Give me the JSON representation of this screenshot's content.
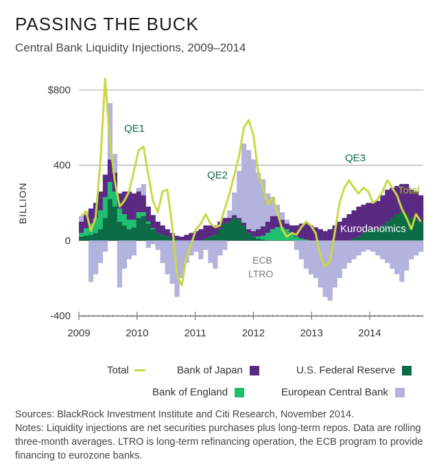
{
  "title": "PASSING THE BUCK",
  "subtitle": "Central Bank Liquidity Injections, 2009–2014",
  "colors": {
    "fed": "#0b6b45",
    "boe": "#1fbf6f",
    "boj": "#5a2a82",
    "ecb": "#b3b3dd",
    "total": "#c9d845",
    "axis": "#555555",
    "annotation_fed": "#0b6b45",
    "annotation_total": "#a9b82a",
    "annotation_light": "#777777"
  },
  "chart_data": {
    "type": "bar",
    "stacked": true,
    "title": "Central Bank Liquidity Injections, 2009–2014",
    "ylabel": "BILLION",
    "ylim": [
      -400,
      800
    ],
    "yticks": [
      -400,
      0,
      400,
      800
    ],
    "ytick_labels": [
      "-400",
      "0",
      "400",
      "$800"
    ],
    "xlim": [
      2009.0,
      2014.92
    ],
    "xticks": [
      2009,
      2010,
      2011,
      2012,
      2013,
      2014
    ],
    "xtick_labels": [
      "2009",
      "2010",
      "2011",
      "2012",
      "2013",
      "2014"
    ],
    "x_start": 2009.0,
    "x_step": 0.08333,
    "series": [
      {
        "name": "U.S. Federal Reserve",
        "key": "fed",
        "values": [
          20,
          25,
          30,
          40,
          60,
          120,
          220,
          180,
          100,
          80,
          60,
          70,
          120,
          130,
          90,
          60,
          40,
          30,
          20,
          10,
          5,
          0,
          0,
          0,
          0,
          0,
          10,
          20,
          30,
          60,
          90,
          100,
          120,
          110,
          80,
          40,
          20,
          10,
          5,
          0,
          0,
          0,
          0,
          0,
          0,
          0,
          0,
          0,
          0,
          0,
          0,
          0,
          0,
          0,
          0,
          0,
          0,
          10,
          20,
          40,
          60,
          60,
          60,
          80,
          100,
          120,
          140,
          150,
          140,
          120,
          110,
          100
        ]
      },
      {
        "name": "Bank of England",
        "key": "boe",
        "values": [
          20,
          40,
          60,
          80,
          100,
          110,
          90,
          80,
          70,
          60,
          50,
          40,
          30,
          20,
          10,
          5,
          0,
          0,
          0,
          0,
          0,
          0,
          0,
          0,
          0,
          0,
          0,
          0,
          0,
          0,
          0,
          0,
          0,
          0,
          0,
          0,
          0,
          10,
          20,
          40,
          60,
          70,
          70,
          60,
          40,
          20,
          10,
          5,
          0,
          0,
          0,
          0,
          0,
          0,
          0,
          0,
          0,
          0,
          0,
          0,
          0,
          0,
          0,
          0,
          0,
          0,
          0,
          0,
          0,
          0,
          0,
          0
        ]
      },
      {
        "name": "Bank of Japan",
        "key": "boj",
        "values": [
          60,
          70,
          80,
          80,
          100,
          120,
          120,
          100,
          80,
          120,
          150,
          140,
          110,
          90,
          80,
          70,
          60,
          50,
          40,
          30,
          20,
          20,
          30,
          40,
          50,
          60,
          70,
          60,
          50,
          40,
          30,
          20,
          15,
          10,
          15,
          20,
          30,
          40,
          50,
          60,
          70,
          60,
          40,
          30,
          40,
          60,
          80,
          90,
          80,
          70,
          60,
          50,
          60,
          80,
          100,
          120,
          140,
          150,
          160,
          150,
          140,
          140,
          150,
          160,
          170,
          160,
          150,
          150,
          160,
          150,
          150,
          140
        ]
      },
      {
        "name": "European Central Bank",
        "key": "ecb",
        "values": [
          30,
          20,
          -220,
          -180,
          -120,
          -60,
          300,
          100,
          -250,
          -150,
          -100,
          -80,
          20,
          60,
          -40,
          -20,
          -50,
          -120,
          -180,
          -230,
          -300,
          -200,
          -120,
          -80,
          -60,
          -100,
          -50,
          -120,
          -150,
          -80,
          -50,
          40,
          120,
          250,
          420,
          420,
          380,
          300,
          250,
          150,
          100,
          60,
          40,
          20,
          0,
          -50,
          -100,
          -150,
          -180,
          -200,
          -250,
          -300,
          -320,
          -250,
          -200,
          -150,
          -120,
          -100,
          -80,
          -60,
          -50,
          -60,
          -80,
          -100,
          -120,
          -150,
          -180,
          -220,
          -160,
          -100,
          -80,
          -60
        ]
      },
      {
        "name": "Total",
        "key": "total",
        "values": [
          130,
          155,
          50,
          120,
          420,
          860,
          520,
          320,
          180,
          210,
          260,
          370,
          480,
          500,
          350,
          210,
          150,
          260,
          270,
          80,
          -180,
          -240,
          -90,
          -20,
          60,
          90,
          140,
          90,
          70,
          80,
          170,
          250,
          350,
          450,
          600,
          640,
          560,
          360,
          280,
          190,
          230,
          150,
          60,
          20,
          40,
          30,
          70,
          100,
          80,
          40,
          -80,
          -140,
          -110,
          40,
          200,
          280,
          320,
          280,
          250,
          280,
          260,
          200,
          220,
          260,
          320,
          280,
          240,
          170,
          120,
          60,
          140,
          100
        ]
      }
    ]
  },
  "annotations": {
    "qe1": "QE1",
    "qe2": "QE2",
    "qe3": "QE3",
    "total": "Total",
    "kurodanomics": "Kurodanomics",
    "ecb_line1": "ECB",
    "ecb_line2": "LTRO"
  },
  "legend": {
    "total": "Total",
    "boj": "Bank of Japan",
    "fed": "U.S. Federal Reserve",
    "boe": "Bank of England",
    "ecb": "European Central Bank"
  },
  "footnote": {
    "sources": "Sources: BlackRock Investment Institute and Citi Research, November 2014.",
    "notes": "Notes: Liquidity injections are net securities purchases plus long-term repos. Data are rolling three-month averages. LTRO is long-term refinancing operation, the ECB program to provide financing to eurozone banks."
  }
}
